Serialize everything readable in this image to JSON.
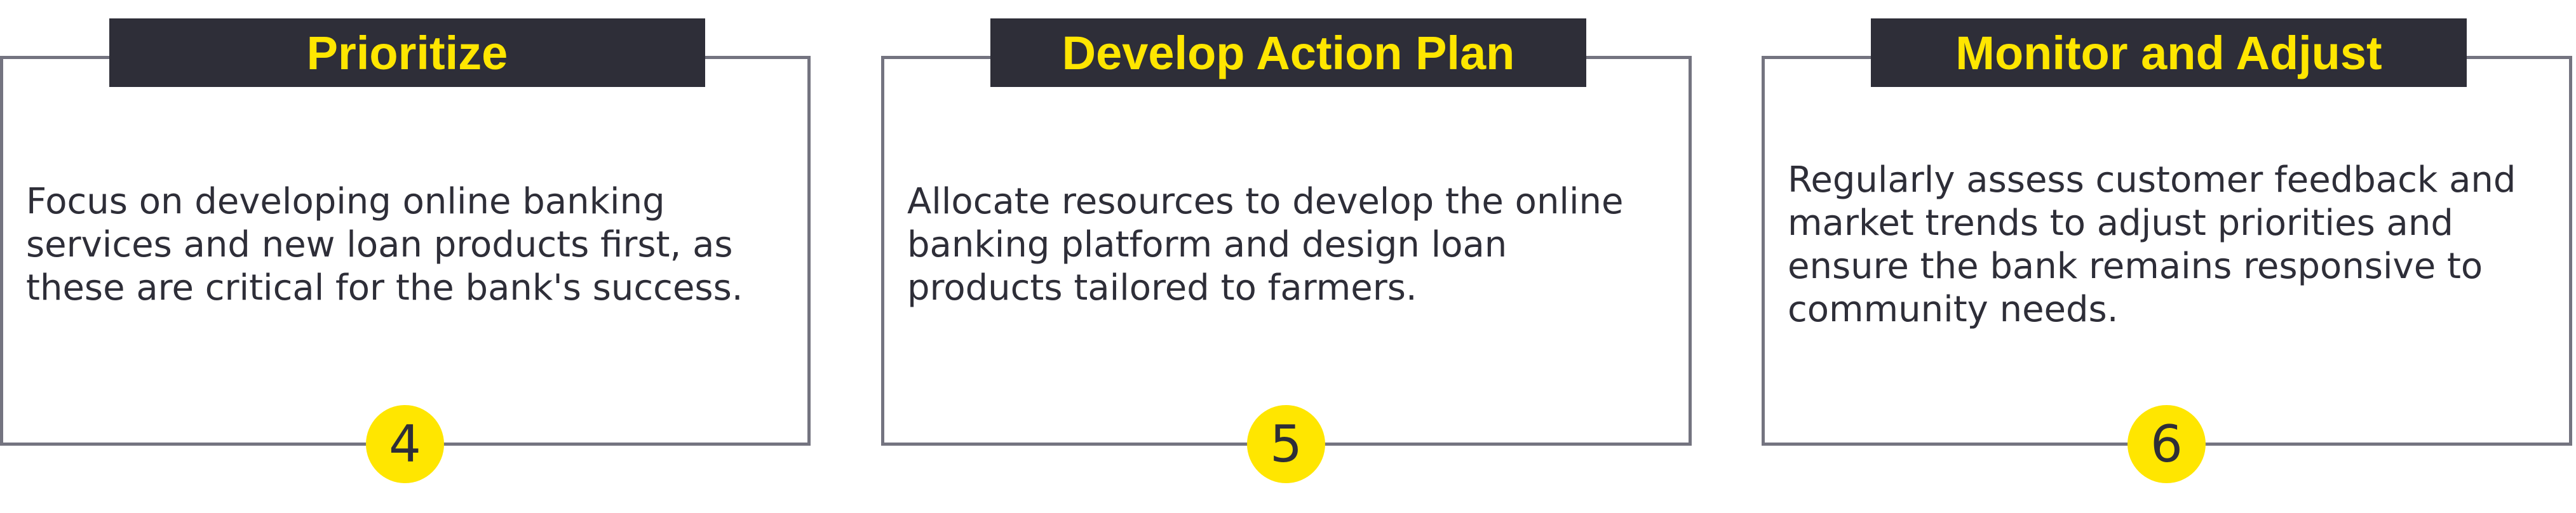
{
  "steps": [
    {
      "number": "4",
      "title": "Prioritize",
      "description": "Focus on developing online banking services and new loan products first, as these are critical for the bank's success."
    },
    {
      "number": "5",
      "title": "Develop Action Plan",
      "description": "Allocate resources to develop the online banking platform and design loan products tailored to farmers."
    },
    {
      "number": "6",
      "title": "Monitor and Adjust",
      "description": "Regularly assess customer feedback and market trends to adjust priorities and ensure the bank remains responsive to community needs."
    }
  ],
  "colors": {
    "title_bar_bg": "#2e2e38",
    "accent_yellow": "#ffe600",
    "border_gray": "#747480",
    "text_dark": "#2e2e38"
  }
}
